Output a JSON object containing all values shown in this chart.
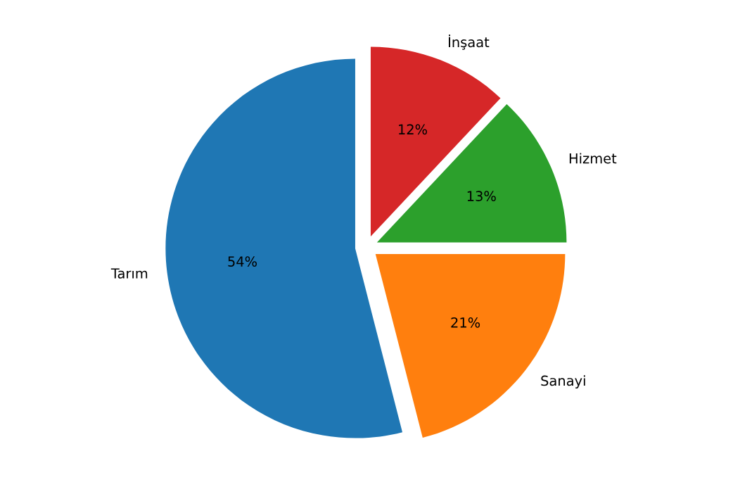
{
  "chart_data": {
    "type": "pie",
    "categories": [
      "Tarım",
      "Sanayi",
      "Hizmet",
      "İnşaat"
    ],
    "values": [
      54,
      21,
      13,
      12
    ],
    "colors": [
      "#1f77b4",
      "#ff7f0e",
      "#2ca02c",
      "#d62728"
    ],
    "value_labels": [
      "54%",
      "21%",
      "13%",
      "12%"
    ]
  }
}
